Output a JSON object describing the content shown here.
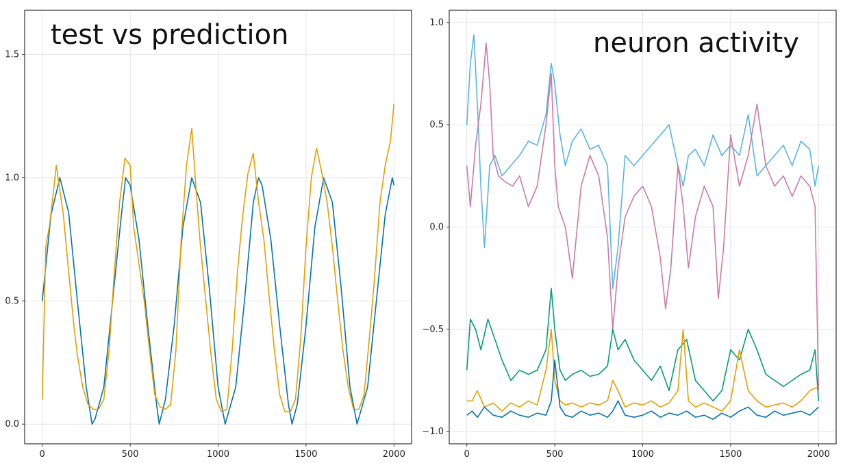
{
  "chart_data": [
    {
      "type": "line",
      "title": "test vs prediction",
      "xlim": [
        -100,
        2100
      ],
      "ylim": [
        -0.08,
        1.68
      ],
      "xticks": [
        0,
        500,
        1000,
        1500,
        2000
      ],
      "yticks": [
        0.0,
        0.5,
        1.0,
        1.5
      ],
      "xtick_labels": [
        "0",
        "500",
        "1000",
        "1500",
        "2000"
      ],
      "ytick_labels": [
        "0.0",
        "0.5",
        "1.0",
        "1.5"
      ],
      "grid": true,
      "series": [
        {
          "color": "#0072b2",
          "x": [
            0,
            50,
            100,
            150,
            200,
            250,
            283,
            300,
            350,
            400,
            450,
            474,
            500,
            550,
            600,
            650,
            665,
            700,
            750,
            800,
            850,
            900,
            950,
            1000,
            1040,
            1100,
            1150,
            1200,
            1230,
            1250,
            1300,
            1350,
            1400,
            1420,
            1450,
            1500,
            1550,
            1600,
            1650,
            1700,
            1750,
            1790,
            1850,
            1900,
            1950,
            1990,
            2000
          ],
          "values": [
            0.5,
            0.85,
            1.0,
            0.86,
            0.5,
            0.15,
            0.0,
            0.02,
            0.15,
            0.5,
            0.85,
            1.0,
            0.97,
            0.75,
            0.4,
            0.08,
            0.0,
            0.1,
            0.4,
            0.8,
            1.0,
            0.9,
            0.55,
            0.15,
            0.0,
            0.15,
            0.5,
            0.9,
            1.0,
            0.97,
            0.75,
            0.4,
            0.08,
            0.0,
            0.08,
            0.4,
            0.8,
            1.0,
            0.9,
            0.55,
            0.15,
            0.0,
            0.15,
            0.5,
            0.85,
            1.0,
            0.97
          ]
        },
        {
          "color": "#e69f00",
          "x": [
            0,
            20,
            40,
            60,
            80,
            100,
            120,
            150,
            180,
            200,
            230,
            260,
            290,
            320,
            350,
            380,
            410,
            440,
            470,
            500,
            520,
            550,
            580,
            610,
            640,
            670,
            700,
            730,
            760,
            790,
            820,
            850,
            880,
            900,
            930,
            960,
            990,
            1020,
            1050,
            1080,
            1110,
            1140,
            1170,
            1200,
            1230,
            1260,
            1290,
            1320,
            1350,
            1380,
            1410,
            1440,
            1470,
            1500,
            1530,
            1560,
            1590,
            1620,
            1650,
            1680,
            1710,
            1740,
            1770,
            1800,
            1830,
            1860,
            1890,
            1920,
            1950,
            1980,
            2000
          ],
          "values": [
            0.1,
            0.72,
            0.8,
            0.92,
            1.05,
            0.95,
            0.85,
            0.62,
            0.4,
            0.28,
            0.15,
            0.08,
            0.06,
            0.06,
            0.1,
            0.3,
            0.62,
            0.9,
            1.08,
            1.05,
            0.8,
            0.65,
            0.5,
            0.3,
            0.12,
            0.07,
            0.06,
            0.08,
            0.3,
            0.75,
            1.05,
            1.2,
            0.9,
            0.72,
            0.5,
            0.28,
            0.1,
            0.05,
            0.06,
            0.3,
            0.62,
            0.85,
            1.02,
            1.1,
            0.9,
            0.75,
            0.52,
            0.3,
            0.12,
            0.05,
            0.05,
            0.1,
            0.35,
            0.72,
            1.0,
            1.12,
            1.02,
            0.9,
            0.72,
            0.5,
            0.3,
            0.15,
            0.06,
            0.06,
            0.12,
            0.35,
            0.6,
            0.9,
            1.05,
            1.15,
            1.3
          ]
        }
      ]
    },
    {
      "type": "line",
      "title": "neuron activity",
      "xlim": [
        -100,
        2100
      ],
      "ylim": [
        -1.06,
        1.06
      ],
      "xticks": [
        0,
        500,
        1000,
        1500,
        2000
      ],
      "yticks": [
        -1.0,
        -0.5,
        0.0,
        0.5,
        1.0
      ],
      "xtick_labels": [
        "0",
        "500",
        "1000",
        "1500",
        "2000"
      ],
      "ytick_labels": [
        "−1.0",
        "−0.5",
        "0.0",
        "0.5",
        "1.0"
      ],
      "grid": true,
      "series": [
        {
          "color": "#56b4e9",
          "x": [
            0,
            20,
            40,
            60,
            80,
            100,
            130,
            160,
            200,
            250,
            300,
            350,
            400,
            450,
            480,
            500,
            530,
            560,
            600,
            650,
            700,
            750,
            800,
            830,
            860,
            900,
            950,
            1000,
            1050,
            1100,
            1150,
            1200,
            1230,
            1260,
            1300,
            1350,
            1400,
            1450,
            1500,
            1550,
            1600,
            1650,
            1700,
            1750,
            1800,
            1850,
            1900,
            1950,
            1980,
            2000
          ],
          "values": [
            0.5,
            0.8,
            0.94,
            0.6,
            0.2,
            -0.1,
            0.3,
            0.35,
            0.25,
            0.3,
            0.35,
            0.42,
            0.4,
            0.55,
            0.8,
            0.7,
            0.45,
            0.3,
            0.42,
            0.48,
            0.38,
            0.4,
            0.3,
            -0.3,
            -0.1,
            0.35,
            0.3,
            0.35,
            0.4,
            0.45,
            0.5,
            0.3,
            0.2,
            0.35,
            0.38,
            0.3,
            0.45,
            0.35,
            0.4,
            0.35,
            0.55,
            0.25,
            0.3,
            0.35,
            0.4,
            0.3,
            0.42,
            0.38,
            0.2,
            0.3
          ]
        },
        {
          "color": "#cc79a7",
          "x": [
            0,
            20,
            50,
            80,
            110,
            130,
            150,
            180,
            220,
            260,
            300,
            350,
            400,
            450,
            480,
            500,
            520,
            560,
            600,
            650,
            700,
            750,
            800,
            830,
            860,
            900,
            950,
            1000,
            1050,
            1100,
            1130,
            1160,
            1200,
            1230,
            1260,
            1300,
            1350,
            1400,
            1430,
            1460,
            1500,
            1550,
            1600,
            1650,
            1700,
            1750,
            1800,
            1850,
            1900,
            1950,
            1980,
            2000
          ],
          "values": [
            0.3,
            0.1,
            0.4,
            0.6,
            0.9,
            0.7,
            0.35,
            0.25,
            0.22,
            0.2,
            0.25,
            0.1,
            0.2,
            0.5,
            0.75,
            0.3,
            0.1,
            0.0,
            -0.25,
            0.2,
            0.35,
            0.25,
            -0.05,
            -0.5,
            -0.2,
            0.05,
            0.15,
            0.2,
            0.1,
            -0.15,
            -0.4,
            -0.2,
            0.3,
            0.1,
            -0.2,
            0.05,
            0.2,
            0.1,
            -0.35,
            -0.1,
            0.45,
            0.2,
            0.35,
            0.6,
            0.3,
            0.2,
            0.25,
            0.15,
            0.25,
            0.2,
            0.1,
            -0.8
          ]
        },
        {
          "color": "#009e73",
          "x": [
            0,
            20,
            50,
            80,
            120,
            160,
            200,
            250,
            300,
            350,
            400,
            450,
            480,
            500,
            530,
            560,
            600,
            650,
            700,
            750,
            800,
            830,
            860,
            900,
            950,
            1000,
            1050,
            1100,
            1150,
            1200,
            1250,
            1300,
            1350,
            1400,
            1450,
            1500,
            1550,
            1600,
            1650,
            1700,
            1750,
            1800,
            1850,
            1900,
            1950,
            1980,
            2000
          ],
          "values": [
            -0.7,
            -0.45,
            -0.5,
            -0.6,
            -0.45,
            -0.55,
            -0.65,
            -0.75,
            -0.7,
            -0.72,
            -0.7,
            -0.6,
            -0.3,
            -0.5,
            -0.7,
            -0.75,
            -0.72,
            -0.7,
            -0.73,
            -0.72,
            -0.68,
            -0.5,
            -0.6,
            -0.55,
            -0.65,
            -0.7,
            -0.75,
            -0.68,
            -0.8,
            -0.6,
            -0.55,
            -0.75,
            -0.8,
            -0.85,
            -0.8,
            -0.6,
            -0.65,
            -0.5,
            -0.6,
            -0.72,
            -0.75,
            -0.78,
            -0.75,
            -0.72,
            -0.7,
            -0.6,
            -0.85
          ]
        },
        {
          "color": "#e69f00",
          "x": [
            0,
            30,
            60,
            100,
            150,
            200,
            250,
            300,
            350,
            400,
            450,
            480,
            500,
            530,
            560,
            600,
            650,
            700,
            750,
            800,
            830,
            860,
            900,
            950,
            1000,
            1050,
            1100,
            1150,
            1200,
            1230,
            1260,
            1300,
            1350,
            1400,
            1450,
            1500,
            1550,
            1600,
            1650,
            1700,
            1750,
            1800,
            1850,
            1900,
            1950,
            2000
          ],
          "values": [
            -0.85,
            -0.85,
            -0.8,
            -0.88,
            -0.86,
            -0.9,
            -0.86,
            -0.88,
            -0.85,
            -0.87,
            -0.7,
            -0.5,
            -0.75,
            -0.85,
            -0.87,
            -0.86,
            -0.88,
            -0.86,
            -0.87,
            -0.85,
            -0.75,
            -0.8,
            -0.88,
            -0.86,
            -0.87,
            -0.85,
            -0.88,
            -0.86,
            -0.8,
            -0.5,
            -0.85,
            -0.88,
            -0.86,
            -0.88,
            -0.9,
            -0.85,
            -0.6,
            -0.8,
            -0.85,
            -0.88,
            -0.87,
            -0.86,
            -0.88,
            -0.85,
            -0.8,
            -0.78
          ]
        },
        {
          "color": "#0072b2",
          "x": [
            0,
            30,
            60,
            100,
            150,
            200,
            250,
            300,
            350,
            400,
            450,
            480,
            500,
            530,
            560,
            600,
            650,
            700,
            750,
            800,
            830,
            860,
            900,
            950,
            1000,
            1050,
            1100,
            1150,
            1200,
            1250,
            1300,
            1350,
            1400,
            1450,
            1500,
            1550,
            1600,
            1650,
            1700,
            1750,
            1800,
            1850,
            1900,
            1950,
            2000
          ],
          "values": [
            -0.92,
            -0.9,
            -0.93,
            -0.88,
            -0.92,
            -0.93,
            -0.9,
            -0.92,
            -0.93,
            -0.91,
            -0.92,
            -0.85,
            -0.65,
            -0.88,
            -0.92,
            -0.93,
            -0.9,
            -0.92,
            -0.91,
            -0.93,
            -0.9,
            -0.85,
            -0.92,
            -0.93,
            -0.92,
            -0.9,
            -0.93,
            -0.91,
            -0.92,
            -0.9,
            -0.93,
            -0.92,
            -0.94,
            -0.91,
            -0.93,
            -0.9,
            -0.88,
            -0.92,
            -0.93,
            -0.9,
            -0.92,
            -0.91,
            -0.9,
            -0.92,
            -0.88
          ]
        }
      ]
    }
  ]
}
